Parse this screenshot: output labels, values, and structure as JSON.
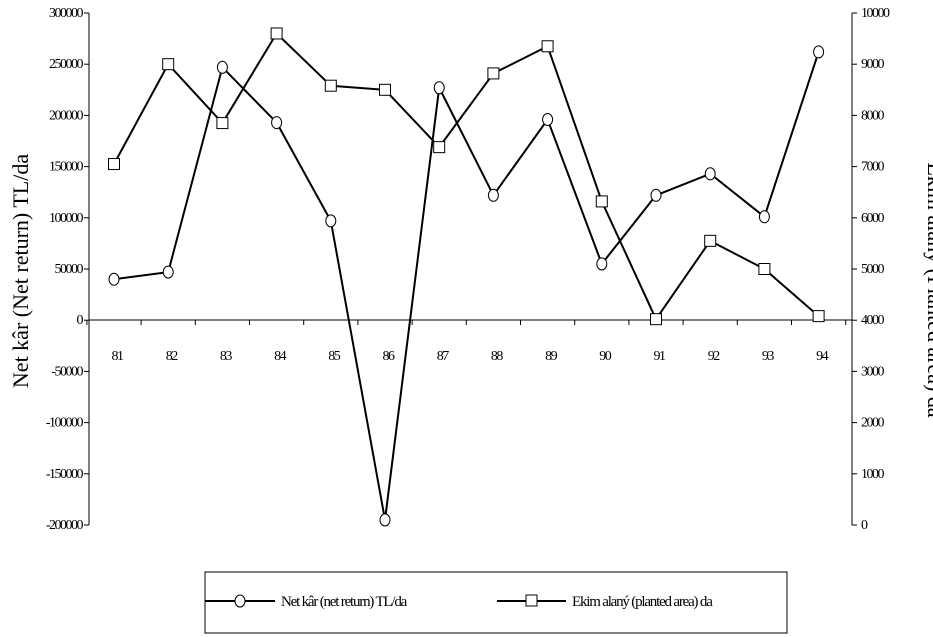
{
  "chart_data": {
    "type": "line",
    "categories": [
      "81",
      "82",
      "83",
      "84",
      "85",
      "86",
      "87",
      "88",
      "89",
      "90",
      "91",
      "92",
      "93",
      "94"
    ],
    "y_left": {
      "label": "Net kâr (Net return) TL/da",
      "ylim": [
        -200000,
        300000
      ],
      "ticks": [
        300000,
        250000,
        200000,
        150000,
        100000,
        50000,
        0,
        -50000,
        -100000,
        -150000,
        -200000
      ],
      "tick_labels": [
        "300000",
        "250000",
        "200000",
        "150000",
        "100000",
        "50000",
        "0",
        "-50000",
        "-100000",
        "-150000",
        "-200000"
      ]
    },
    "y_right": {
      "label": "Ekim alaný (Planted area) da",
      "ylim": [
        0,
        10000
      ],
      "ticks": [
        10000,
        9000,
        8000,
        7000,
        6000,
        5000,
        4000,
        3000,
        2000,
        1000,
        0
      ],
      "tick_labels": [
        "10000",
        "9000",
        "8000",
        "7000",
        "6000",
        "5000",
        "4000",
        "3000",
        "2000",
        "1000",
        "0"
      ]
    },
    "series": [
      {
        "name": "Net kâr (net return) TL/da",
        "axis": "left",
        "marker": "circle",
        "values": [
          40000,
          47000,
          247000,
          193000,
          97000,
          -195000,
          227000,
          122000,
          196000,
          55000,
          122000,
          143000,
          101000,
          262000
        ]
      },
      {
        "name": "Ekim alaný (planted area) da",
        "axis": "right",
        "marker": "square",
        "values": [
          7050,
          9000,
          7850,
          9600,
          8580,
          8500,
          7380,
          8820,
          9350,
          6320,
          4020,
          5550,
          5000,
          4080
        ]
      }
    ],
    "legend": {
      "placement": "bottom-center",
      "items": [
        "Net kâr (net return) TL/da",
        "Ekim alaný (planted area) da"
      ]
    },
    "grid": false,
    "colors": {
      "line": "#000000",
      "marker_fill": "#ffffff"
    }
  }
}
